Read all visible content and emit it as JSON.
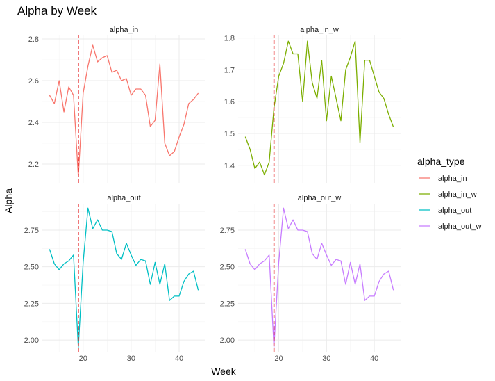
{
  "chart_data": {
    "type": "line",
    "title": "Alpha by Week",
    "xlabel": "Week",
    "ylabel": "Alpha",
    "legend_title": "alpha_type",
    "legend_position": "right",
    "facet_layout": "2x2",
    "vline": {
      "x": 19,
      "color": "#e41a1c",
      "style": "dashed"
    },
    "x": [
      13,
      14,
      15,
      16,
      17,
      18,
      19,
      20,
      21,
      22,
      23,
      24,
      25,
      26,
      27,
      28,
      29,
      30,
      31,
      32,
      33,
      34,
      35,
      36,
      37,
      38,
      39,
      40,
      41,
      42,
      43,
      44
    ],
    "facets": [
      {
        "name": "alpha_in",
        "color": "#F8766D",
        "ylim": [
          2.11,
          2.82
        ],
        "yticks": [
          2.2,
          2.4,
          2.6,
          2.8
        ],
        "ytick_labels": [
          "2.2",
          "2.4",
          "2.6",
          "2.8"
        ],
        "xticks": [
          20,
          30,
          40
        ],
        "values": [
          2.53,
          2.49,
          2.6,
          2.45,
          2.57,
          2.53,
          2.14,
          2.54,
          2.67,
          2.77,
          2.69,
          2.71,
          2.72,
          2.64,
          2.65,
          2.6,
          2.61,
          2.53,
          2.56,
          2.56,
          2.53,
          2.38,
          2.41,
          2.68,
          2.3,
          2.24,
          2.26,
          2.33,
          2.39,
          2.49,
          2.51,
          2.54
        ]
      },
      {
        "name": "alpha_in_w",
        "color": "#7CAE00",
        "ylim": [
          1.345,
          1.81
        ],
        "yticks": [
          1.4,
          1.5,
          1.6,
          1.7,
          1.8
        ],
        "ytick_labels": [
          "1.4",
          "1.5",
          "1.6",
          "1.7",
          "1.8"
        ],
        "xticks": [
          20,
          30,
          40
        ],
        "values": [
          1.49,
          1.45,
          1.39,
          1.41,
          1.37,
          1.41,
          1.58,
          1.68,
          1.72,
          1.79,
          1.75,
          1.75,
          1.6,
          1.79,
          1.66,
          1.61,
          1.73,
          1.54,
          1.68,
          1.61,
          1.54,
          1.7,
          1.74,
          1.79,
          1.47,
          1.73,
          1.73,
          1.68,
          1.63,
          1.61,
          1.56,
          1.52
        ]
      },
      {
        "name": "alpha_out",
        "color": "#00BFC4",
        "ylim": [
          1.92,
          2.93
        ],
        "yticks": [
          2.0,
          2.25,
          2.5,
          2.75
        ],
        "ytick_labels": [
          "2.00",
          "2.25",
          "2.50",
          "2.75"
        ],
        "xticks": [
          20,
          30,
          40
        ],
        "values": [
          2.62,
          2.52,
          2.48,
          2.52,
          2.54,
          2.58,
          1.95,
          2.53,
          2.9,
          2.76,
          2.82,
          2.75,
          2.75,
          2.74,
          2.59,
          2.55,
          2.66,
          2.58,
          2.51,
          2.55,
          2.54,
          2.38,
          2.53,
          2.38,
          2.52,
          2.27,
          2.3,
          2.3,
          2.4,
          2.45,
          2.47,
          2.34
        ]
      },
      {
        "name": "alpha_out_w",
        "color": "#C77CFF",
        "ylim": [
          1.92,
          2.93
        ],
        "yticks": [
          2.0,
          2.25,
          2.5,
          2.75
        ],
        "ytick_labels": [
          "2.00",
          "2.25",
          "2.50",
          "2.75"
        ],
        "xticks": [
          20,
          30,
          40
        ],
        "values": [
          2.62,
          2.52,
          2.48,
          2.52,
          2.54,
          2.58,
          1.95,
          2.53,
          2.9,
          2.76,
          2.82,
          2.75,
          2.75,
          2.74,
          2.59,
          2.55,
          2.66,
          2.58,
          2.51,
          2.55,
          2.54,
          2.38,
          2.53,
          2.38,
          2.52,
          2.27,
          2.3,
          2.3,
          2.4,
          2.45,
          2.47,
          2.34
        ]
      }
    ],
    "legend": [
      {
        "label": "alpha_in",
        "color": "#F8766D"
      },
      {
        "label": "alpha_in_w",
        "color": "#7CAE00"
      },
      {
        "label": "alpha_out",
        "color": "#00BFC4"
      },
      {
        "label": "alpha_out_w",
        "color": "#C77CFF"
      }
    ]
  }
}
